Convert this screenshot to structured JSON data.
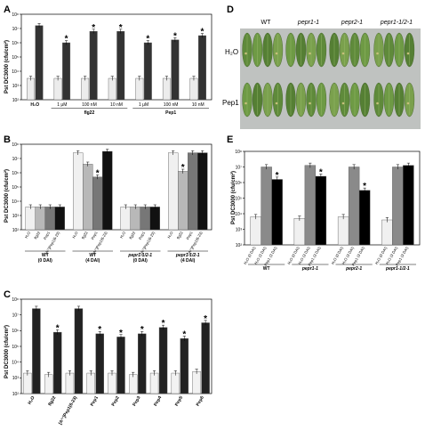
{
  "panels": {
    "A": "A",
    "B": "B",
    "C": "C",
    "D": "D",
    "E": "E"
  },
  "ylabel": "Pst DC3000 (cfu/cm²)",
  "photo": {
    "columns": [
      "WT",
      "pepr1-1",
      "pepr2-1",
      "pepr1-1/2-1"
    ],
    "rows": [
      "H₂O",
      "Pep1"
    ]
  },
  "chart_data": [
    {
      "panel": "A",
      "type": "bar",
      "log_scale": true,
      "ylim_exp": [
        2,
        8
      ],
      "groups": [
        {
          "label": "H₂O",
          "subs": [
            {
              "label": "",
              "light": 3.5,
              "dark": 7.2,
              "star": false
            }
          ]
        },
        {
          "label": "flg22",
          "subs": [
            {
              "label": "1 μM",
              "light": 3.5,
              "dark": 6.0,
              "star": true
            },
            {
              "label": "100 nM",
              "light": 3.5,
              "dark": 6.8,
              "star": true
            },
            {
              "label": "10 nM",
              "light": 3.5,
              "dark": 6.8,
              "star": true
            }
          ]
        },
        {
          "label": "Pep1",
          "subs": [
            {
              "label": "1 μM",
              "light": 3.5,
              "dark": 6.0,
              "star": true
            },
            {
              "label": "100 nM",
              "light": 3.5,
              "dark": 6.2,
              "star": true
            },
            {
              "label": "10 nM",
              "light": 3.5,
              "dark": 6.5,
              "star": true
            }
          ]
        }
      ]
    },
    {
      "panel": "B",
      "type": "bar",
      "log_scale": true,
      "ylim_exp": [
        2,
        8
      ],
      "series_labels": [
        "H₂O",
        "flg22",
        "Pep1",
        "[A¹⁷]Pep1(6-23)"
      ],
      "groups": [
        {
          "label": "WT",
          "sub": "(0 DAI)",
          "values": [
            3.6,
            3.6,
            3.6,
            3.6
          ],
          "stars": [
            false,
            false,
            false,
            false
          ]
        },
        {
          "label": "WT",
          "sub": "(4 DAI)",
          "values": [
            7.4,
            6.6,
            5.7,
            7.5
          ],
          "stars": [
            false,
            false,
            true,
            false
          ]
        },
        {
          "label": "pepr1-1/2-1",
          "sub": "(0 DAI)",
          "values": [
            3.6,
            3.6,
            3.6,
            3.6
          ],
          "stars": [
            false,
            false,
            false,
            false
          ]
        },
        {
          "label": "pepr1-1/2-1",
          "sub": "(4 DAI)",
          "values": [
            7.4,
            6.1,
            7.4,
            7.4
          ],
          "stars": [
            false,
            true,
            false,
            false
          ]
        }
      ]
    },
    {
      "panel": "C",
      "type": "bar",
      "log_scale": true,
      "ylim_exp": [
        2,
        8
      ],
      "categories": [
        "H₂O",
        "flg22",
        "[A¹⁷]Pep1(6-23)",
        "Pep1",
        "Pep2",
        "Pep3",
        "Pep4",
        "Pep5",
        "Pep6"
      ],
      "light": [
        3.3,
        3.2,
        3.3,
        3.3,
        3.3,
        3.2,
        3.3,
        3.3,
        3.4
      ],
      "dark": [
        7.4,
        5.9,
        7.4,
        5.8,
        5.6,
        5.8,
        6.2,
        5.5,
        6.5
      ],
      "stars": [
        false,
        true,
        false,
        true,
        true,
        true,
        true,
        true,
        true
      ]
    },
    {
      "panel": "E",
      "type": "bar",
      "log_scale": true,
      "ylim_exp": [
        2,
        8
      ],
      "bar_labels": [
        "H₂O (0 DAI)",
        "H₂O (3 DAI)",
        "Pep1 (3 DAI)"
      ],
      "groups": [
        {
          "label": "WT",
          "values": [
            3.8,
            7.0,
            6.2
          ],
          "stars": [
            false,
            false,
            true
          ]
        },
        {
          "label": "pepr1-1",
          "values": [
            3.7,
            7.1,
            6.4
          ],
          "stars": [
            false,
            false,
            true
          ]
        },
        {
          "label": "pepr2-1",
          "values": [
            3.8,
            7.0,
            5.5
          ],
          "stars": [
            false,
            false,
            true
          ]
        },
        {
          "label": "pepr1-1/2-1",
          "values": [
            3.6,
            7.0,
            7.1
          ],
          "stars": [
            false,
            false,
            false
          ]
        }
      ]
    }
  ]
}
